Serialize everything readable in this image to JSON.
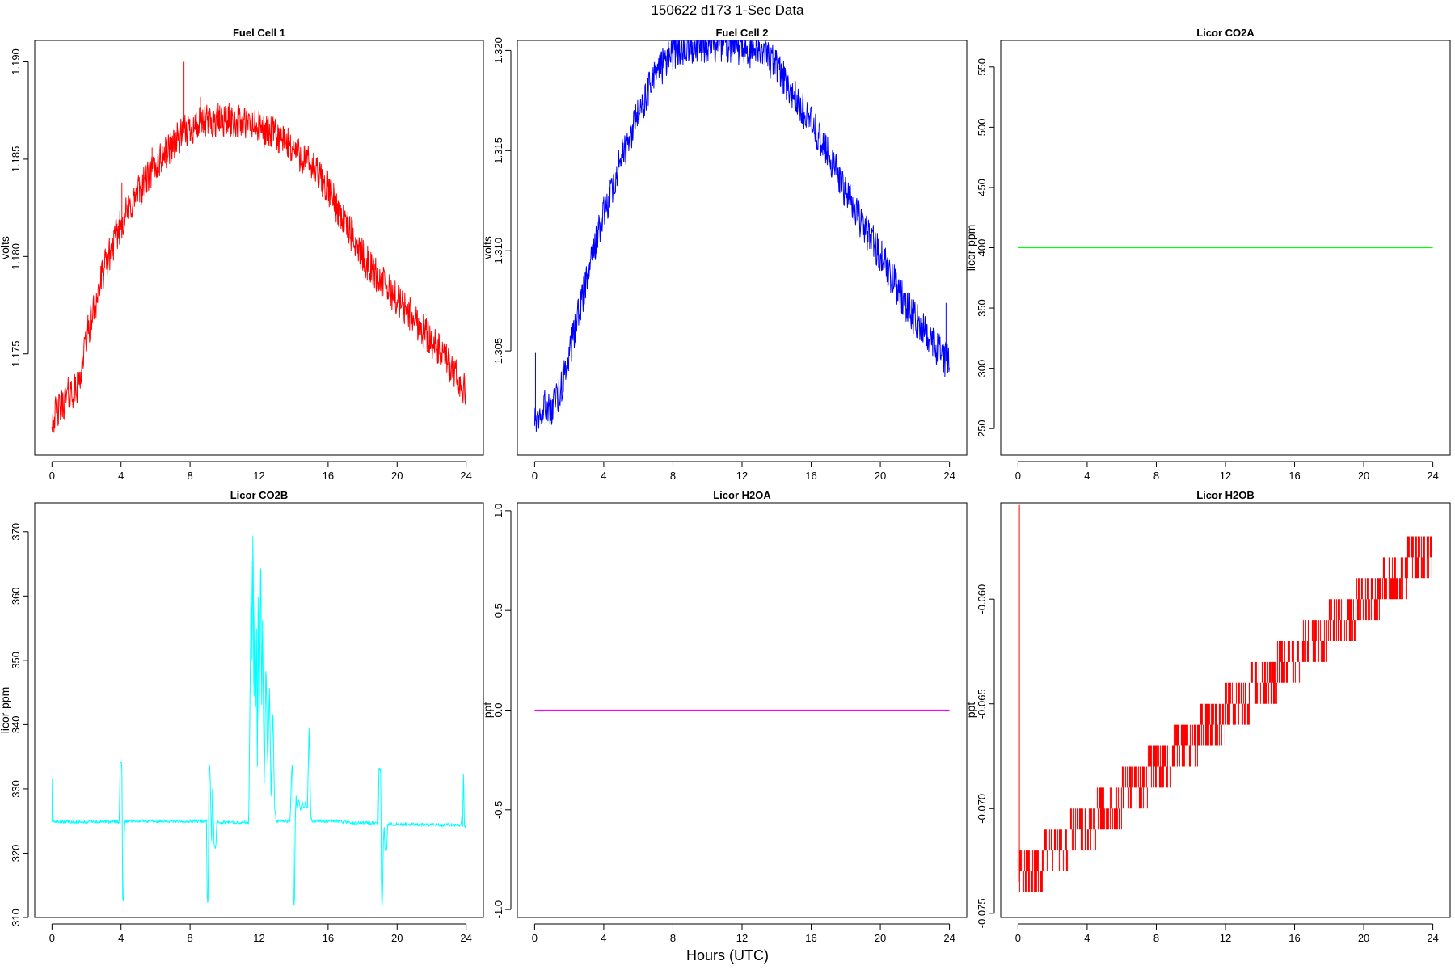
{
  "figure": {
    "title": "150622   d173   1-Sec Data",
    "xlabel": "Hours (UTC)"
  },
  "chart_data": [
    {
      "type": "line",
      "title": "Fuel Cell 1",
      "ylabel": "volts",
      "color": "#ff0000",
      "xlim": [
        -1,
        25
      ],
      "ylim": [
        1.1698,
        1.1911
      ],
      "x_ticks": [
        0,
        4,
        8,
        12,
        16,
        20,
        24
      ],
      "y_ticks": [
        1.175,
        1.18,
        1.185,
        1.19
      ],
      "y_tick_labels": [
        "1.175",
        "1.180",
        "1.185",
        "1.190"
      ],
      "x_tick_labels": [
        "0",
        "4",
        "8",
        "12",
        "16",
        "20",
        "24"
      ],
      "noise": 0.0009,
      "series": [
        {
          "x": [
            0,
            0.5,
            1,
            1.5,
            2,
            3,
            4,
            5,
            6,
            7,
            8,
            9,
            10,
            11,
            12,
            13,
            14,
            15,
            16,
            17,
            18,
            19,
            20,
            21,
            22,
            23,
            24
          ],
          "y": [
            1.1717,
            1.1722,
            1.173,
            1.1732,
            1.1758,
            1.1793,
            1.1817,
            1.1833,
            1.1846,
            1.1858,
            1.1866,
            1.1869,
            1.187,
            1.1869,
            1.1866,
            1.1862,
            1.1855,
            1.1847,
            1.1835,
            1.1817,
            1.18,
            1.1788,
            1.1778,
            1.1768,
            1.1757,
            1.1744,
            1.173
          ]
        }
      ],
      "spikes": [
        {
          "x": 4.05,
          "y": 1.1838
        },
        {
          "x": 5.8,
          "y": 1.1856
        },
        {
          "x": 7.65,
          "y": 1.19
        },
        {
          "x": 8.6,
          "y": 1.1882
        }
      ]
    },
    {
      "type": "line",
      "title": "Fuel Cell 2",
      "ylabel": "volts",
      "color": "#0000ff",
      "xlim": [
        -1,
        25
      ],
      "ylim": [
        1.2998,
        1.3205
      ],
      "x_ticks": [
        0,
        4,
        8,
        12,
        16,
        20,
        24
      ],
      "y_ticks": [
        1.305,
        1.31,
        1.315,
        1.32
      ],
      "y_tick_labels": [
        "1.305",
        "1.310",
        "1.315",
        "1.320"
      ],
      "x_tick_labels": [
        "0",
        "4",
        "8",
        "12",
        "16",
        "20",
        "24"
      ],
      "noise": 0.0009,
      "series": [
        {
          "x": [
            0,
            0.5,
            1,
            1.5,
            2,
            3,
            4,
            5,
            6,
            7,
            8,
            9,
            10,
            11,
            12,
            13,
            14,
            15,
            16,
            17,
            18,
            19,
            20,
            21,
            22,
            23,
            24
          ],
          "y": [
            1.3017,
            1.3023,
            1.3022,
            1.3031,
            1.3048,
            1.3085,
            1.3119,
            1.3145,
            1.3168,
            1.3188,
            1.3199,
            1.3202,
            1.3203,
            1.3203,
            1.3201,
            1.3199,
            1.3192,
            1.3178,
            1.3163,
            1.3149,
            1.3128,
            1.3113,
            1.3098,
            1.3081,
            1.3066,
            1.3054,
            1.3043
          ]
        }
      ],
      "spikes": [
        {
          "x": 0.05,
          "y": 1.3049
        },
        {
          "x": 23.8,
          "y": 1.3074
        }
      ]
    },
    {
      "type": "line",
      "title": "Licor CO2A",
      "ylabel": "licor-ppm",
      "color": "#00ff00",
      "xlim": [
        -1,
        25
      ],
      "ylim": [
        228,
        572
      ],
      "x_ticks": [
        0,
        4,
        8,
        12,
        16,
        20,
        24
      ],
      "y_ticks": [
        250,
        300,
        350,
        400,
        450,
        500,
        550
      ],
      "y_tick_labels": [
        "250",
        "300",
        "350",
        "400",
        "450",
        "500",
        "550"
      ],
      "x_tick_labels": [
        "0",
        "4",
        "8",
        "12",
        "16",
        "20",
        "24"
      ],
      "noise": 0,
      "series": [
        {
          "x": [
            0,
            24
          ],
          "y": [
            400,
            400
          ]
        }
      ],
      "spikes": []
    },
    {
      "type": "line",
      "title": "Licor CO2B",
      "ylabel": "licor-ppm",
      "color": "#00ffff",
      "xlim": [
        -1,
        25
      ],
      "ylim": [
        310,
        374.5
      ],
      "x_ticks": [
        0,
        4,
        8,
        12,
        16,
        20,
        24
      ],
      "y_ticks": [
        310,
        320,
        330,
        340,
        350,
        360,
        370
      ],
      "y_tick_labels": [
        "310",
        "320",
        "330",
        "340",
        "350",
        "360",
        "370"
      ],
      "x_tick_labels": [
        "0",
        "4",
        "8",
        "12",
        "16",
        "20",
        "24"
      ],
      "noise": 0.25,
      "series": [
        {
          "x": [
            0,
            0.03,
            0.06,
            0.1,
            3.9,
            3.95,
            4.05,
            4.1,
            4.12,
            4.15,
            4.2,
            4.25,
            8.9,
            8.95,
            9.0,
            9.05,
            9.1,
            9.15,
            9.25,
            9.3,
            9.4,
            9.5,
            9.55,
            9.6,
            11.4,
            11.5,
            11.55,
            11.6,
            11.65,
            11.7,
            11.75,
            11.8,
            11.85,
            11.9,
            11.95,
            12.0,
            12.05,
            12.1,
            12.15,
            12.2,
            12.3,
            12.4,
            12.5,
            12.6,
            12.7,
            12.8,
            12.9,
            13.0,
            13.1,
            13.2,
            13.5,
            13.8,
            13.9,
            13.95,
            14.0,
            14.05,
            14.1,
            14.15,
            14.2,
            14.3,
            14.4,
            14.5,
            14.6,
            14.7,
            14.8,
            14.9,
            15.0,
            15.1,
            15.3,
            16.0,
            16.5,
            17.0,
            17.5,
            18.0,
            18.9,
            18.95,
            19.05,
            19.1,
            19.15,
            19.2,
            19.25,
            19.3,
            19.4,
            19.45,
            19.5,
            21.0,
            22.0,
            23.0,
            23.7,
            23.75,
            23.8,
            23.85,
            23.9,
            24.0
          ],
          "y": [
            325,
            333,
            325,
            324.9,
            324.9,
            334,
            334,
            312.5,
            312.5,
            312.5,
            324.5,
            325,
            325,
            325,
            312.5,
            312.5,
            333.8,
            333.8,
            321.5,
            330,
            321,
            321,
            325,
            324.8,
            324.8,
            351,
            366,
            348,
            374,
            339,
            363,
            341,
            356,
            333,
            362,
            337,
            352,
            369,
            341,
            357,
            330,
            350,
            333,
            346,
            328,
            343,
            327,
            325,
            325,
            325,
            325,
            325,
            333.6,
            333.6,
            312,
            312,
            325.5,
            329,
            326.5,
            328.5,
            326.5,
            328,
            327,
            328,
            326.5,
            340,
            325.5,
            325,
            325,
            325,
            325,
            324.8,
            324.7,
            324.7,
            324.7,
            333,
            333,
            312,
            312,
            321,
            324.5,
            320.5,
            320.5,
            324.5,
            324.5,
            324.5,
            324.4,
            324.4,
            324.4,
            325.5,
            324.2,
            333,
            324.3,
            324.3
          ]
        }
      ],
      "spikes": []
    },
    {
      "type": "line",
      "title": "Licor H2OA",
      "ylabel": "ppt",
      "color": "#ff00ff",
      "xlim": [
        -1,
        25
      ],
      "ylim": [
        -1.04,
        1.04
      ],
      "x_ticks": [
        0,
        4,
        8,
        12,
        16,
        20,
        24
      ],
      "y_ticks": [
        -1,
        -0.5,
        0,
        0.5,
        1
      ],
      "y_tick_labels": [
        "-1.0",
        "-0.5",
        "0.0",
        "0.5",
        "1.0"
      ],
      "x_tick_labels": [
        "0",
        "4",
        "8",
        "12",
        "16",
        "20",
        "24"
      ],
      "noise": 0,
      "series": [
        {
          "x": [
            0,
            24
          ],
          "y": [
            0,
            0
          ]
        }
      ],
      "spikes": []
    },
    {
      "type": "line",
      "title": "Licor H2OB",
      "ylabel": "ppt",
      "color": "#ff0000",
      "xlim": [
        -1,
        25
      ],
      "ylim": [
        -0.0752,
        -0.0554
      ],
      "x_ticks": [
        0,
        4,
        8,
        12,
        16,
        20,
        24
      ],
      "y_ticks": [
        -0.075,
        -0.07,
        -0.065,
        -0.06
      ],
      "y_tick_labels": [
        "-0.075",
        "-0.070",
        "-0.065",
        "-0.060"
      ],
      "x_tick_labels": [
        "0",
        "4",
        "8",
        "12",
        "16",
        "20",
        "24"
      ],
      "noise": 0,
      "steps": {
        "start": -0.0735,
        "end": -0.0575,
        "step": 0.001
      },
      "series": [
        {
          "x": [
            0,
            24
          ],
          "y": [
            -0.0735,
            -0.0575
          ]
        }
      ],
      "spikes": [
        {
          "x": 0.08,
          "y": -0.0555
        }
      ]
    }
  ]
}
